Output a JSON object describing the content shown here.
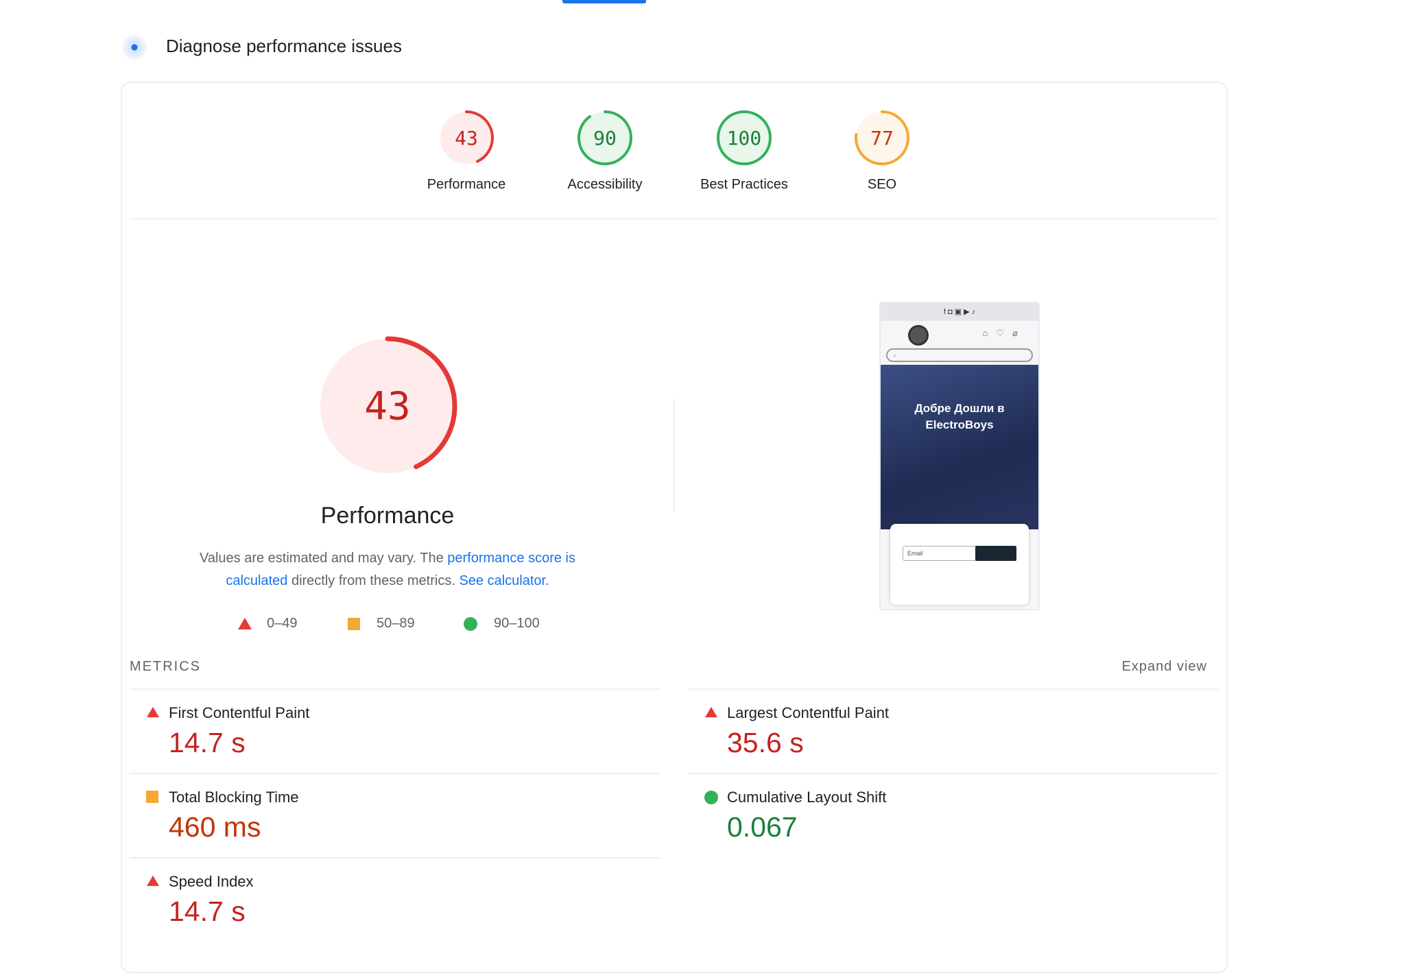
{
  "header": {
    "title": "Diagnose performance issues"
  },
  "colors": {
    "fail": "#e53935",
    "fail_text": "#c5221f",
    "average": "#f4a836",
    "average_text": "#c33300",
    "pass": "#34b05a",
    "pass_text": "#188038",
    "link": "#1a73e8"
  },
  "categories": [
    {
      "label": "Performance",
      "score": 43,
      "rating": "fail"
    },
    {
      "label": "Accessibility",
      "score": 90,
      "rating": "pass"
    },
    {
      "label": "Best Practices",
      "score": 100,
      "rating": "pass"
    },
    {
      "label": "SEO",
      "score": 77,
      "rating": "average"
    }
  ],
  "main": {
    "score": 43,
    "label": "Performance",
    "desc_1": "Values are estimated and may vary. The ",
    "link_1": "performance score is calculated",
    "desc_2": " directly from these metrics. ",
    "link_2": "See calculator.",
    "legend": [
      {
        "icon": "triangle",
        "range": "0–49"
      },
      {
        "icon": "square",
        "range": "50–89"
      },
      {
        "icon": "circle",
        "range": "90–100"
      }
    ]
  },
  "screenshot": {
    "hero_title": "Добре Дошли в ElectroBoys",
    "email_placeholder": "Email"
  },
  "metrics": {
    "heading": "METRICS",
    "expand": "Expand view",
    "items": [
      {
        "title": "First Contentful Paint",
        "value": "14.7 s",
        "rating": "fail"
      },
      {
        "title": "Largest Contentful Paint",
        "value": "35.6 s",
        "rating": "fail"
      },
      {
        "title": "Total Blocking Time",
        "value": "460 ms",
        "rating": "average"
      },
      {
        "title": "Cumulative Layout Shift",
        "value": "0.067",
        "rating": "pass"
      },
      {
        "title": "Speed Index",
        "value": "14.7 s",
        "rating": "fail"
      }
    ]
  }
}
